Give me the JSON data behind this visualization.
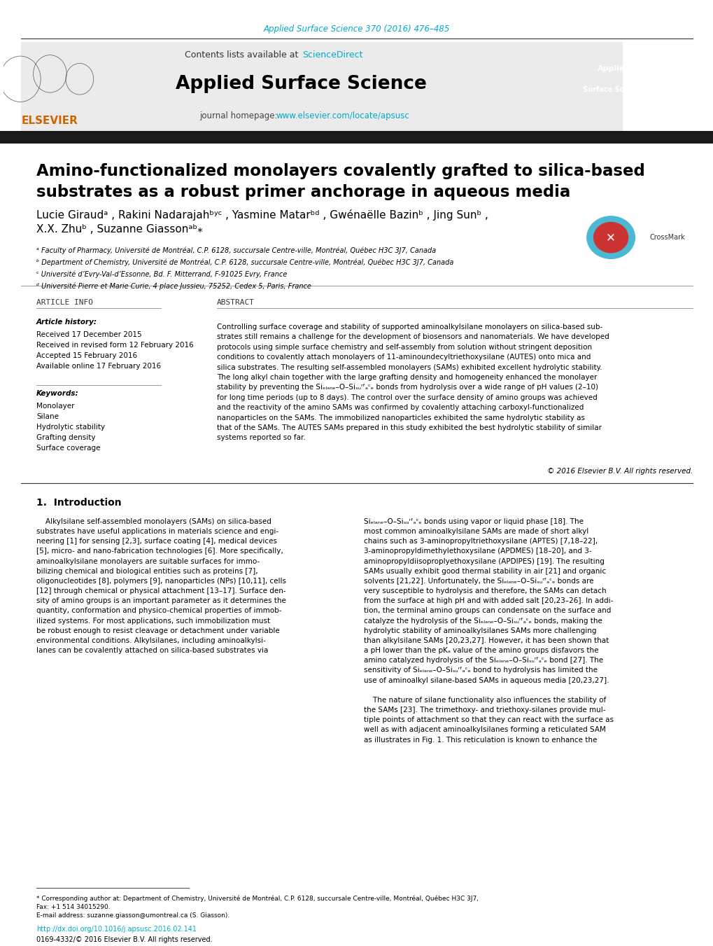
{
  "page_bg": "#ffffff",
  "top_journal_ref": "Applied Surface Science 370 (2016) 476–485",
  "top_journal_ref_color": "#00aacc",
  "header_bg": "#e8e8e8",
  "header_text": "Contents lists available at ",
  "sciencedirect_text": "ScienceDirect",
  "sciencedirect_color": "#00aacc",
  "journal_title": "Applied Surface Science",
  "journal_homepage_label": "journal homepage: ",
  "journal_url": "www.elsevier.com/locate/apsusc",
  "journal_url_color": "#00aacc",
  "dark_bar_color": "#222222",
  "article_title_line1": "Amino-functionalized monolayers covalently grafted to silica-based",
  "article_title_line2": "substrates as a robust primer anchorage in aqueous media",
  "article_title_color": "#000000",
  "authors_line1": "Lucie Giraud ² , Rakini Nadarajahᵇʸᶜ , Yasmine Matarᵇᵈ , Gwénaëlle Bazinᵇ , Jing Sunᵇ ,",
  "authors_line2": "X.X. Zhuᵇ , Suzanne Giassonᵃᵇ⁎",
  "affiliations": [
    "ᵃ Faculty of Pharmacy, Université de Montréal, C.P. 6128, succursale Centre-ville, Montréal, Québec H3C 3J7, Canada",
    "ᵇ Department of Chemistry, Université de Montréal, C.P. 6128, succursale Centre-ville, Montréal, Québec H3C 3J7, Canada",
    "ᶜ Université d’Evry-Val-d’Essonne, Bd. F. Mitterrand, F-91025 Evry, France",
    "ᵈ Université Pierre et Marie Curie, 4 place Jussieu, 75252, Cedex 5, Paris, France"
  ],
  "article_info_title": "ARTICLE INFO",
  "abstract_title": "ABSTRACT",
  "article_history_label": "Article history:",
  "history_items": [
    "Received 17 December 2015",
    "Received in revised form 12 February 2016",
    "Accepted 15 February 2016",
    "Available online 17 February 2016"
  ],
  "keywords_label": "Keywords:",
  "keywords": [
    "Monolayer",
    "Silane",
    "Hydrolytic stability",
    "Grafting density",
    "Surface coverage"
  ],
  "abstract_text": "Controlling surface coverage and stability of supported aminoalkylsilane monolayers on silica-based substrates still remains a challenge for the development of biosensors and nanomaterials. We have developed protocols using simple surface chemistry and self-assembly from solution without stringent deposition conditions to covalently attach monolayers of 11-aminoundecyltriethoxysilane (AUTES) onto mica and silica substrates. The resulting self-assembled monolayers (SAMs) exhibited excellent hydrolytic stability. The long alkyl chain together with the large grafting density and homogeneity enhanced the monolayer stability by preventing the Siₑₗₐₙₑ–O–Siₛᵤʳᶠₐᶜₑ bonds from hydrolysis over a wide range of pH values (2–10) for long time periods (up to 8 days). The control over the surface density of amino groups was achieved and the reactivity of the amino SAMs was confirmed by covalently attaching carboxyl-functionalized nanoparticles on the SAMs. The immobilized nanoparticles exhibited the same hydrolytic stability as that of the SAMs. The AUTES SAMs prepared in this study exhibited the best hydrolytic stability of similar systems reported so far.",
  "copyright_text": "© 2016 Elsevier B.V. All rights reserved.",
  "intro_title": "1.  Introduction",
  "intro_col1": "Alkylsilane self-assembled monolayers (SAMs) on silica-based substrates have useful applications in materials science and engineering [1] for sensing [2,3], surface coating [4], medical devices [5], micro- and nano-fabrication technologies [6]. More specifically, aminoalkylsilane monolayers are suitable surfaces for immobilizing chemical and biological entities such as proteins [7], oligonucleotides [8], polymers [9], nanoparticles (NPs) [10,11], cells [12] through chemical or physical attachment [13–17]. Surface density of amino groups is an important parameter as it determines the quantity, conformation and physico-chemical properties of immobilized systems. For most applications, such immobilization must be robust enough to resist cleavage or detachment under variable environmental conditions. Alkylsilanes, including aminoalkylsilanes can be covalently attached on silica-based substrates via",
  "intro_col2": "Siₑₗₐₙₑ–O–Siₛᵤʳᶠₐᶜₑ bonds using vapor or liquid phase [18]. The most common aminoalkylsilane SAMs are made of short alkyl chains such as 3-aminopropyltriethoxysilane (APTES) [7,18–22], 3-aminopropyldimethylethoxysilane (APDMES) [18–20], and 3-aminopropyldiisoproplyethoxysilane (APDIPES) [19]. The resulting SAMs usually exhibit good thermal stability in air [21] and organic solvents [21,22]. Unfortunately, the Siₑₗₐₙₑ–O–Siₛᵤʳᶠₐᶜₑ bonds are very susceptible to hydrolysis and therefore, the SAMs can detach from the surface at high pH and with added salt [20,23–26]. In addition, the terminal amino groups can condensate on the surface and catalyze the hydrolysis of the Siₑₗₐₙₑ–O–Siₛᵤʳᶠₐᶜₑ bonds, making the hydrolytic stability of aminoalkylsilanes SAMs more challenging than alkylsilane SAMs [20,23,27]. However, it has been shown that a pH lower than the pKₐ value of the amino groups disfavors the amino catalyzed hydrolysis of the Siₑₗₐₙₑ–O–Siₛᵤʳᶠₐᶜₑ bond [27]. The sensitivity of Siₑₗₐₙₑ–O–Siₛᵤʳᶠₐᶜₑ bond to hydrolysis has limited the use of aminoalkyl silane-based SAMs in aqueous media [20,23,27].\n\nThe nature of silane functionality also influences the stability of the SAMs [23]. The trimethoxy- and triethoxy-silanes provide multiple points of attachment so that they can react with the surface as well as with adjacent aminoalkylsilanes forming a reticulated SAM as illustrates in Fig. 1. This reticulation is known to enhance the",
  "footnote_line1": "* Corresponding author at: Department of Chemistry, Université de Montréal, C.P. 6128, succursale Centre-ville, Montréal, Québec H3C 3J7,",
  "footnote_line2": "Fax: +1 514 34015290.",
  "footnote_email": "E-mail address: suzanne.giasson@umontreal.ca (S. Giasson).",
  "doi_text": "http://dx.doi.org/10.1016/j.apsusc.2016.02.141",
  "issn_text": "0169-4332/© 2016 Elsevier B.V. All rights reserved.",
  "doi_color": "#00aacc",
  "link_color": "#00aacc"
}
